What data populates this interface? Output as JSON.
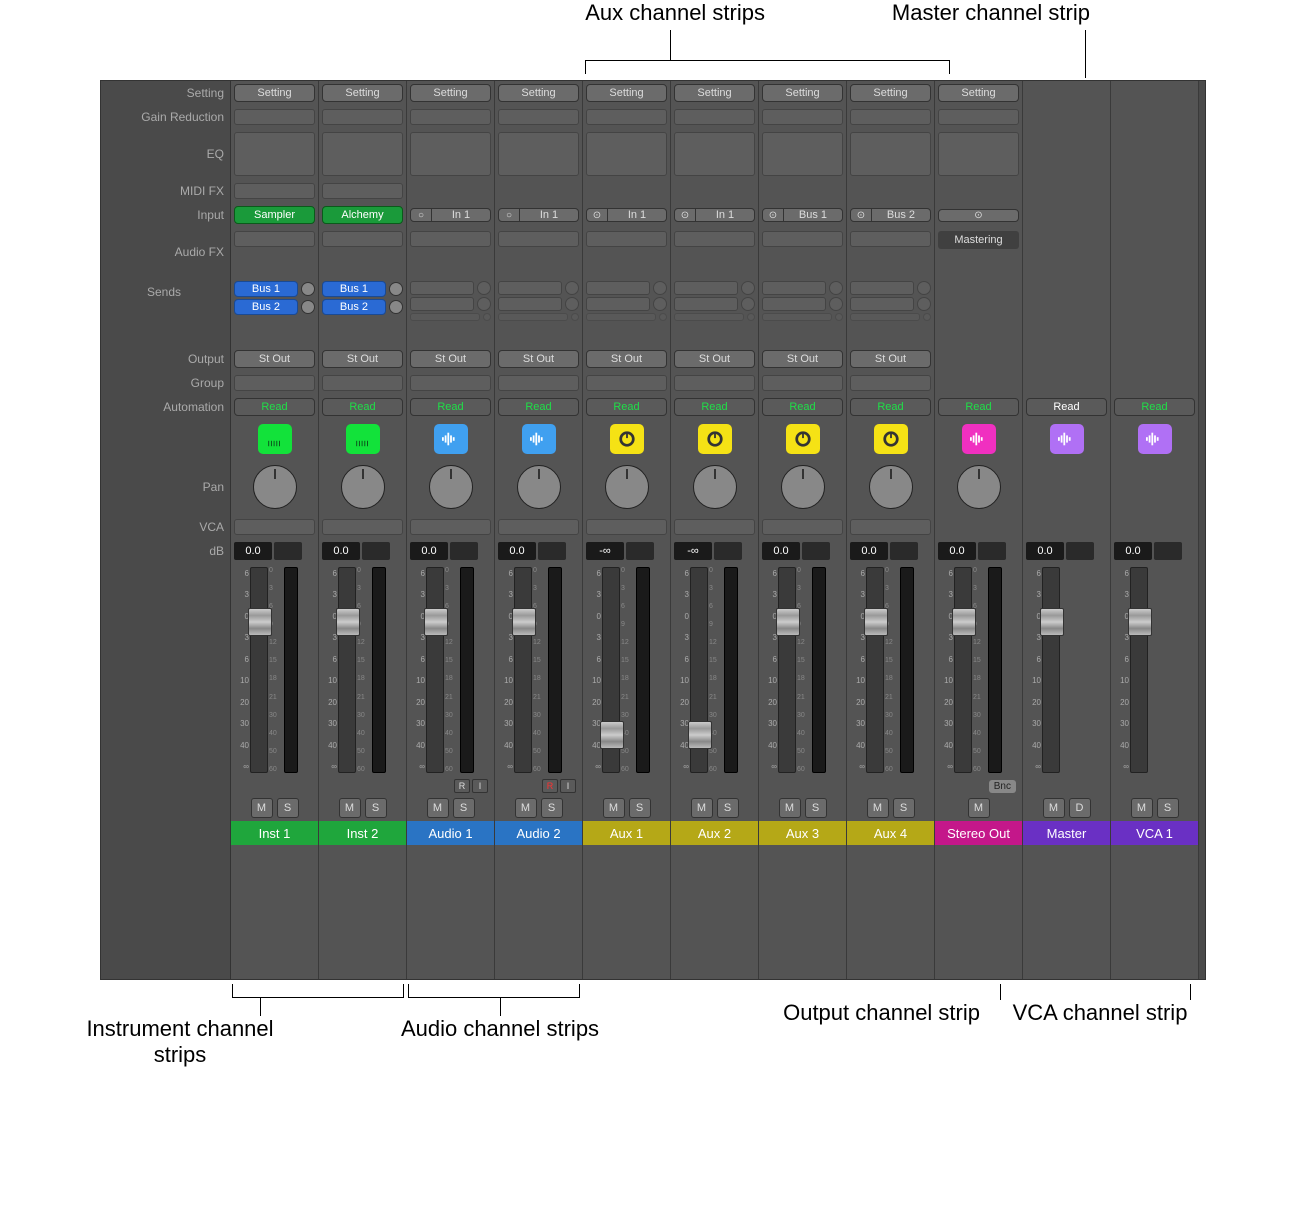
{
  "callouts": {
    "top_aux": "Aux channel strips",
    "top_master": "Master channel strip",
    "bot_instrument": "Instrument channel strips",
    "bot_audio": "Audio channel strips",
    "bot_output": "Output channel strip",
    "bot_vca": "VCA channel strip"
  },
  "row_labels": {
    "setting": "Setting",
    "gain_reduction": "Gain Reduction",
    "eq": "EQ",
    "midifx": "MIDI FX",
    "input": "Input",
    "audiofx": "Audio FX",
    "sends": "Sends",
    "output": "Output",
    "group": "Group",
    "automation": "Automation",
    "pan": "Pan",
    "vca": "VCA",
    "db": "dB"
  },
  "common": {
    "setting_btn": "Setting",
    "stout": "St Out",
    "read": "Read",
    "m": "M",
    "s": "S",
    "d": "D",
    "r": "R",
    "i": "I",
    "bnc": "Bnc",
    "mastering": "Mastering"
  },
  "scale_left": [
    "6",
    "3",
    "0",
    "3",
    "6",
    "10",
    "20",
    "30",
    "40",
    "∞"
  ],
  "scale_right": [
    "0",
    "3",
    "6",
    "9",
    "12",
    "15",
    "18",
    "21",
    "30",
    "40",
    "50",
    "60"
  ],
  "colors": {
    "inst": "#1fa63c",
    "audio": "#2a74c4",
    "aux": "#b5a817",
    "output": "#c4178a",
    "master": "#6a30c4",
    "vca": "#6a30c4",
    "icon_inst": "#12e23a",
    "icon_audio": "#40a0f0",
    "icon_aux": "#f5e215",
    "icon_out": "#f030c0",
    "icon_master": "#b070f5"
  },
  "strips": [
    {
      "id": "inst1",
      "name": "Inst 1",
      "type": "inst",
      "input_kind": "green",
      "input": "Sampler",
      "sends": [
        "Bus 1",
        "Bus 2"
      ],
      "output": "St Out",
      "auto": "Read",
      "auto_c": "green",
      "db": "0.0",
      "fader": 0.22,
      "pan": true,
      "ms": [
        "M",
        "S"
      ],
      "has_rec": false,
      "name_color": "inst"
    },
    {
      "id": "inst2",
      "name": "Inst 2",
      "type": "inst",
      "input_kind": "green",
      "input": "Alchemy",
      "sends": [
        "Bus 1",
        "Bus 2"
      ],
      "output": "St Out",
      "auto": "Read",
      "auto_c": "green",
      "db": "0.0",
      "fader": 0.22,
      "pan": true,
      "ms": [
        "M",
        "S"
      ],
      "has_rec": false,
      "name_color": "inst"
    },
    {
      "id": "audio1",
      "name": "Audio 1",
      "type": "audio",
      "input_kind": "io",
      "input_mode": "○",
      "input": "In 1",
      "sends": [],
      "output": "St Out",
      "auto": "Read",
      "auto_c": "green",
      "db": "0.0",
      "fader": 0.22,
      "pan": true,
      "ms": [
        "M",
        "S"
      ],
      "has_rec": true,
      "rec_armed": false,
      "name_color": "audio"
    },
    {
      "id": "audio2",
      "name": "Audio 2",
      "type": "audio",
      "input_kind": "io",
      "input_mode": "○",
      "input": "In 1",
      "sends": [],
      "output": "St Out",
      "auto": "Read",
      "auto_c": "green",
      "db": "0.0",
      "fader": 0.22,
      "pan": true,
      "ms": [
        "M",
        "S"
      ],
      "has_rec": true,
      "rec_armed": true,
      "name_color": "audio"
    },
    {
      "id": "aux1",
      "name": "Aux 1",
      "type": "aux",
      "input_kind": "io",
      "input_mode": "⊙",
      "input": "In 1",
      "sends": [],
      "output": "St Out",
      "auto": "Read",
      "auto_c": "green",
      "db": "-∞",
      "fader": 0.85,
      "pan": true,
      "ms": [
        "M",
        "S"
      ],
      "has_rec": false,
      "name_color": "aux"
    },
    {
      "id": "aux2",
      "name": "Aux 2",
      "type": "aux",
      "input_kind": "io",
      "input_mode": "⊙",
      "input": "In 1",
      "sends": [],
      "output": "St Out",
      "auto": "Read",
      "auto_c": "green",
      "db": "-∞",
      "fader": 0.85,
      "pan": true,
      "ms": [
        "M",
        "S"
      ],
      "has_rec": false,
      "name_color": "aux"
    },
    {
      "id": "aux3",
      "name": "Aux 3",
      "type": "aux",
      "input_kind": "io",
      "input_mode": "⊙",
      "input": "Bus 1",
      "sends": [],
      "output": "St Out",
      "auto": "Read",
      "auto_c": "green",
      "db": "0.0",
      "fader": 0.22,
      "pan": true,
      "ms": [
        "M",
        "S"
      ],
      "has_rec": false,
      "name_color": "aux"
    },
    {
      "id": "aux4",
      "name": "Aux 4",
      "type": "aux",
      "input_kind": "io",
      "input_mode": "⊙",
      "input": "Bus 2",
      "sends": [],
      "output": "St Out",
      "auto": "Read",
      "auto_c": "green",
      "db": "0.0",
      "fader": 0.22,
      "pan": true,
      "ms": [
        "M",
        "S"
      ],
      "has_rec": false,
      "name_color": "aux"
    },
    {
      "id": "stereo",
      "name": "Stereo Out",
      "type": "output",
      "input_kind": "stereo",
      "input_mode": "⊙",
      "input": "",
      "sends": [],
      "output": "",
      "auto": "Read",
      "auto_c": "green",
      "db": "0.0",
      "fader": 0.22,
      "pan": true,
      "ms": [
        "M"
      ],
      "has_bnc": true,
      "audiofx": "Mastering",
      "name_color": "output"
    },
    {
      "id": "master",
      "name": "Master",
      "type": "master",
      "input_kind": "none",
      "sends": [],
      "output": "",
      "auto": "Read",
      "auto_c": "white",
      "db": "0.0",
      "fader": 0.22,
      "pan": false,
      "ms": [
        "M",
        "D"
      ],
      "name_color": "master",
      "no_setting": true
    },
    {
      "id": "vca1",
      "name": "VCA 1",
      "type": "vca",
      "input_kind": "none",
      "sends": [],
      "output": "",
      "auto": "Read",
      "auto_c": "green",
      "db": "0.0",
      "fader": 0.22,
      "pan": false,
      "ms": [
        "M",
        "S"
      ],
      "name_color": "vca",
      "no_setting": true
    }
  ]
}
